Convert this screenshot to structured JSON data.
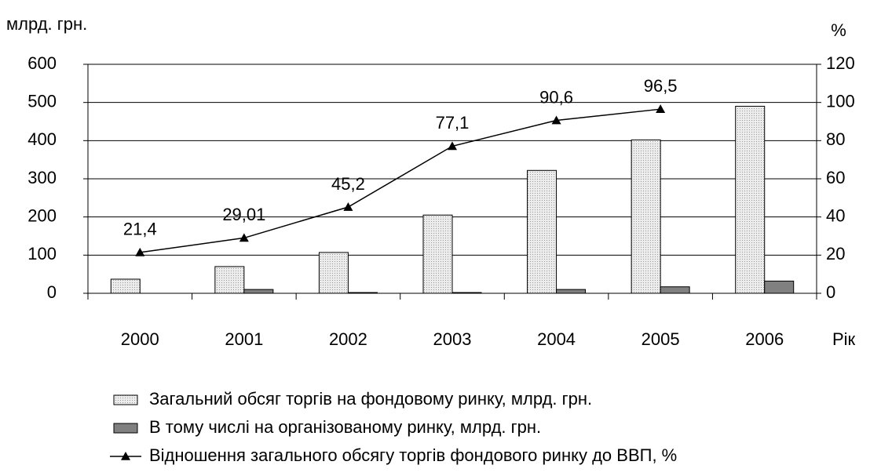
{
  "chart_data": {
    "type": "bar_line",
    "y_label": "млрд. грн.",
    "y2_label": "%",
    "x_label": "Рік",
    "categories": [
      "2000",
      "2001",
      "2002",
      "2003",
      "2004",
      "2005",
      "2006"
    ],
    "series": [
      {
        "name": "Загальний обсяг торгів на фондовому ринку, млрд. грн.",
        "type": "bar",
        "color": "#d9d9d9",
        "values": [
          37,
          70,
          107,
          205,
          322,
          402,
          490
        ]
      },
      {
        "name": "В тому числі на організованому ринку, млрд. грн.",
        "type": "bar",
        "color": "#808080",
        "values": [
          0,
          10,
          2,
          2,
          10,
          17,
          32
        ]
      },
      {
        "name": "Відношення загального обсягу торгів фондового ринку до ВВП, %",
        "type": "line",
        "axis": "y2",
        "color": "#000000",
        "values": [
          21.4,
          29.01,
          45.2,
          77.1,
          90.6,
          96.5,
          null
        ],
        "value_labels": [
          "21,4",
          "29,01",
          "45,2",
          "77,1",
          "90,6",
          "96,5",
          null
        ]
      }
    ],
    "ylim": [
      0,
      600
    ],
    "yticks": [
      0,
      100,
      200,
      300,
      400,
      500,
      600
    ],
    "y2lim": [
      0,
      120
    ],
    "y2ticks": [
      0,
      20,
      40,
      60,
      80,
      100,
      120
    ],
    "grid": true
  }
}
